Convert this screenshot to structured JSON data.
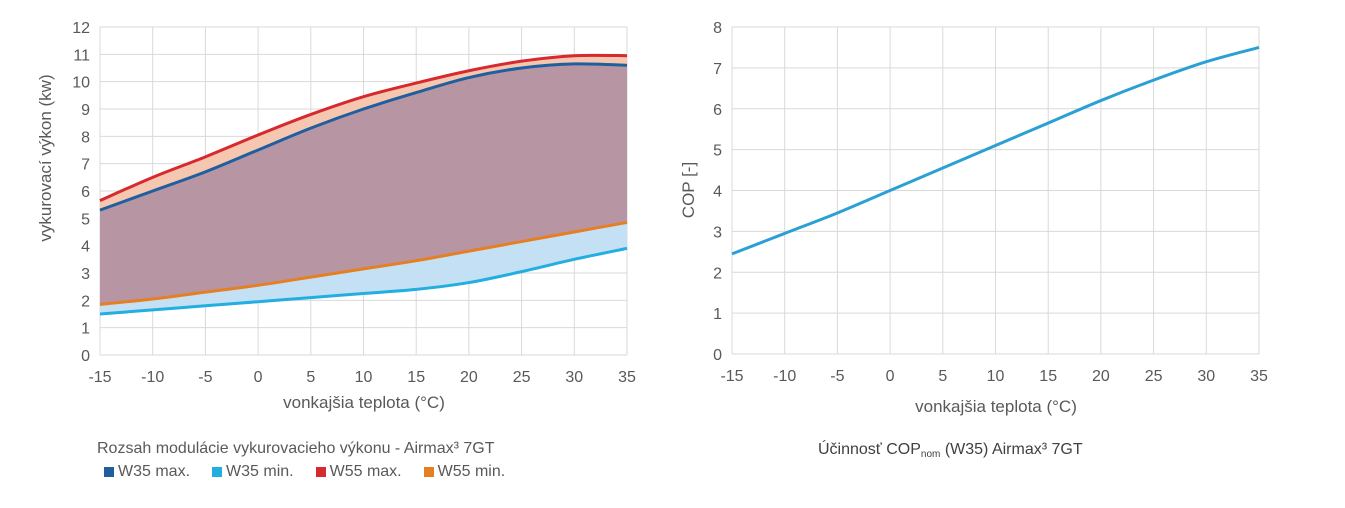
{
  "colors": {
    "w35max": "#1f5fa0",
    "w35min": "#22aee0",
    "w55max": "#d62a2e",
    "w55min": "#e67e22",
    "cop": "#2aa0d4",
    "fill_upper": "#b895a2",
    "fill_top_band": "#f6c7b0",
    "fill_bottom_band": "#d8b2a0",
    "fill_blue_band": "#c4e0f5"
  },
  "chart_data": [
    {
      "type": "area",
      "title": "Rozsah modulácie vykurovacieho výkonu - Airmax³ 7GT",
      "xlabel": "vonkajšia teplota (°C)",
      "ylabel": "vykurovací výkon (kw)",
      "xlim": [
        -15,
        35
      ],
      "ylim": [
        0,
        12
      ],
      "xticks": [
        "-15",
        "-10",
        "-5",
        "0",
        "5",
        "10",
        "15",
        "20",
        "25",
        "30",
        "35"
      ],
      "yticks": [
        "0",
        "1",
        "2",
        "3",
        "4",
        "5",
        "6",
        "7",
        "8",
        "9",
        "10",
        "11",
        "12"
      ],
      "x": [
        -15,
        -10,
        -5,
        0,
        5,
        10,
        15,
        20,
        25,
        30,
        35
      ],
      "series": [
        {
          "name": "W35 max.",
          "values": [
            5.3,
            6.0,
            6.7,
            7.5,
            8.3,
            9.0,
            9.6,
            10.15,
            10.5,
            10.65,
            10.6
          ]
        },
        {
          "name": "W35 min.",
          "values": [
            1.5,
            1.65,
            1.8,
            1.95,
            2.1,
            2.25,
            2.4,
            2.65,
            3.05,
            3.5,
            3.9
          ]
        },
        {
          "name": "W55 max.",
          "values": [
            5.65,
            6.5,
            7.25,
            8.05,
            8.8,
            9.45,
            9.95,
            10.4,
            10.75,
            10.95,
            10.95
          ]
        },
        {
          "name": "W55 min.",
          "values": [
            1.85,
            2.05,
            2.3,
            2.55,
            2.85,
            3.15,
            3.45,
            3.8,
            4.15,
            4.5,
            4.85
          ]
        }
      ]
    },
    {
      "type": "line",
      "title_prefix": "Účinnosť COP",
      "title_sub": "nom",
      "title_suffix": " (W35) Airmax³ 7GT",
      "xlabel": "vonkajšia teplota (°C)",
      "ylabel": "COP [-]",
      "xlim": [
        -15,
        35
      ],
      "ylim": [
        0,
        8
      ],
      "xticks": [
        "-15",
        "-10",
        "-5",
        "0",
        "5",
        "10",
        "15",
        "20",
        "25",
        "30",
        "35"
      ],
      "yticks": [
        "0",
        "1",
        "2",
        "3",
        "4",
        "5",
        "6",
        "7",
        "8"
      ],
      "x": [
        -15,
        -10,
        -5,
        0,
        5,
        10,
        15,
        20,
        25,
        30,
        35
      ],
      "series": [
        {
          "name": "COP",
          "values": [
            2.45,
            2.95,
            3.45,
            4.0,
            4.55,
            5.1,
            5.65,
            6.2,
            6.7,
            7.15,
            7.5
          ]
        }
      ]
    }
  ]
}
